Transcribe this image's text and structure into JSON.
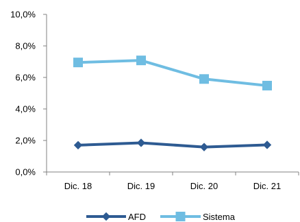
{
  "chart_data": {
    "type": "line",
    "categories": [
      "Dic. 18",
      "Dic. 19",
      "Dic. 20",
      "Dic. 21"
    ],
    "series": [
      {
        "name": "AFD",
        "values": [
          1.7,
          1.85,
          1.58,
          1.72
        ],
        "color": "#2e5b92",
        "marker": "diamond"
      },
      {
        "name": "Sistema",
        "values": [
          6.95,
          7.08,
          5.9,
          5.48
        ],
        "color": "#6fbde2",
        "marker": "square"
      }
    ],
    "ylim": [
      0,
      10
    ],
    "yticks": [
      "0,0%",
      "2,0%",
      "4,0%",
      "6,0%",
      "8,0%",
      "10,0%"
    ],
    "ytick_values": [
      0,
      2,
      4,
      6,
      8,
      10
    ],
    "title": "",
    "xlabel": "",
    "ylabel": "",
    "grid": false,
    "legend_position": "bottom-center"
  }
}
